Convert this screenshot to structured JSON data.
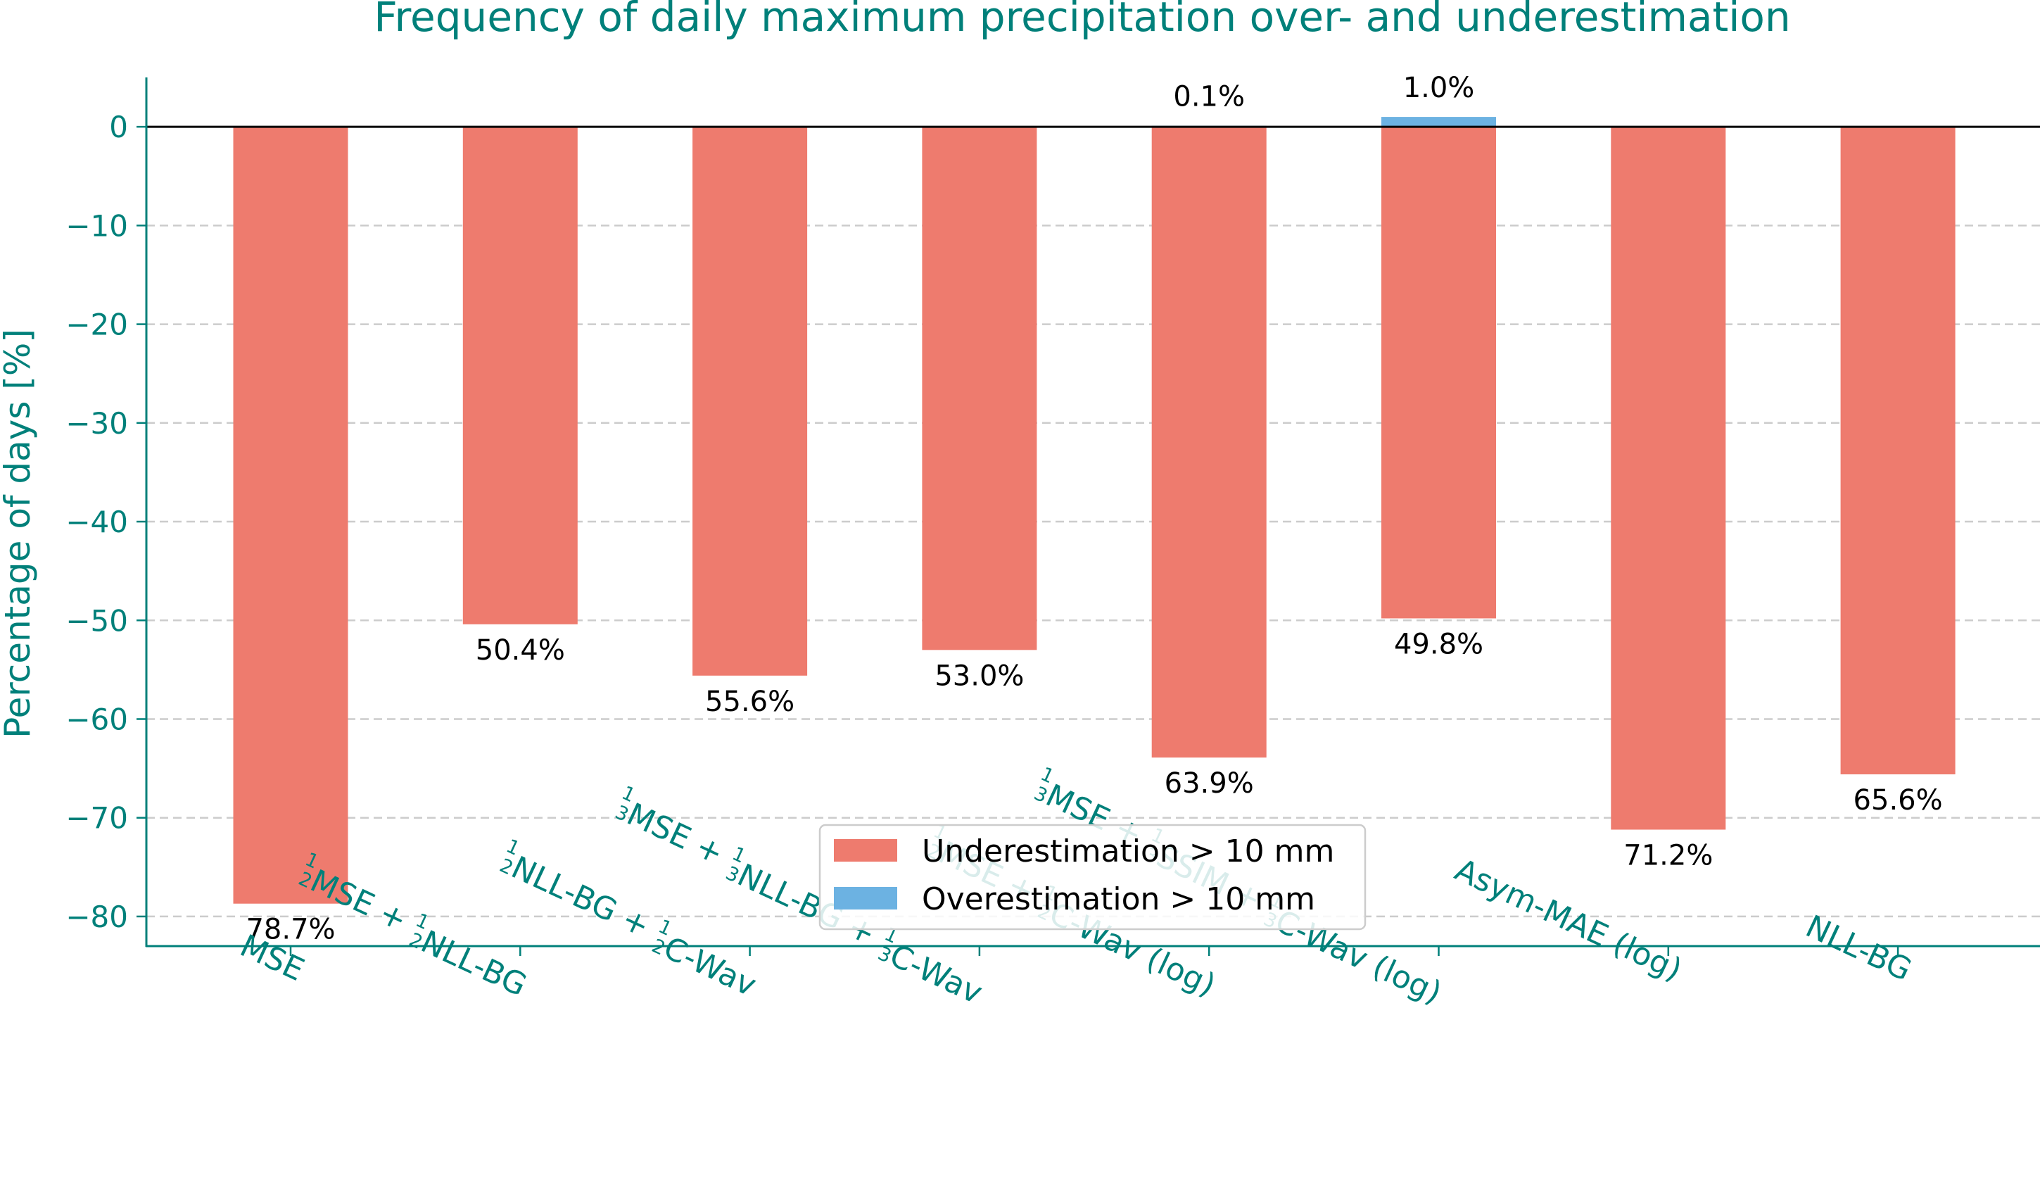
{
  "colors": {
    "accent": "#00807a",
    "under": "#ee7b6e",
    "over": "#6cb2e2",
    "grid": "#cccccc",
    "zero_line": "#000000"
  },
  "chart_data": {
    "type": "bar",
    "title": "Frequency of daily maximum precipitation over- and underestimation",
    "xlabel": "",
    "ylabel": "Percentage of days [%]",
    "ylim": [
      -83,
      5
    ],
    "yticks": [
      0,
      -10,
      -20,
      -30,
      -40,
      -50,
      -60,
      -70,
      -80
    ],
    "ytick_labels": [
      "0",
      "−10",
      "−20",
      "−30",
      "−40",
      "−50",
      "−60",
      "−70",
      "−80"
    ],
    "grid": "horizontal dashed",
    "legend_position": "lower center",
    "categories": [
      "MSE",
      "1/2MSE + 1/2NLL-BG",
      "1/2NLL-BG + 1/2C-Wav",
      "1/3MSE + 1/3NLL-BG + 1/3C-Wav",
      "1/2MSE + 1/2C-Wav (log)",
      "1/3MSE + 1/3SSIM + 1/3C-Wav (log)",
      "Asym-MAE (log)",
      "NLL-BG"
    ],
    "category_parts": [
      [
        [
          "t",
          "MSE"
        ]
      ],
      [
        [
          "f",
          "1",
          "2"
        ],
        [
          "t",
          "MSE + "
        ],
        [
          "f",
          "1",
          "2"
        ],
        [
          "t",
          "NLL-BG"
        ]
      ],
      [
        [
          "f",
          "1",
          "2"
        ],
        [
          "t",
          "NLL-BG + "
        ],
        [
          "f",
          "1",
          "2"
        ],
        [
          "t",
          "C-Wav"
        ]
      ],
      [
        [
          "f",
          "1",
          "3"
        ],
        [
          "t",
          "MSE + "
        ],
        [
          "f",
          "1",
          "3"
        ],
        [
          "t",
          "NLL-BG + "
        ],
        [
          "f",
          "1",
          "3"
        ],
        [
          "t",
          "C-Wav"
        ]
      ],
      [
        [
          "f",
          "1",
          "2"
        ],
        [
          "t",
          "MSE + "
        ],
        [
          "f",
          "1",
          "2"
        ],
        [
          "t",
          "C-Wav (log)"
        ]
      ],
      [
        [
          "f",
          "1",
          "3"
        ],
        [
          "t",
          "MSE + "
        ],
        [
          "f",
          "1",
          "3"
        ],
        [
          "t",
          "SSIM + "
        ],
        [
          "f",
          "1",
          "3"
        ],
        [
          "t",
          "C-Wav (log)"
        ]
      ],
      [
        [
          "t",
          "Asym-MAE (log)"
        ]
      ],
      [
        [
          "t",
          "NLL-BG"
        ]
      ]
    ],
    "series": [
      {
        "name": "Underestimation > 10 mm",
        "color": "#ee7b6e",
        "values": [
          -78.7,
          -50.4,
          -55.6,
          -53.0,
          -63.9,
          -49.8,
          -71.2,
          -65.6
        ],
        "labels": [
          "78.7%",
          "50.4%",
          "55.6%",
          "53.0%",
          "63.9%",
          "49.8%",
          "71.2%",
          "65.6%"
        ]
      },
      {
        "name": "Overestimation > 10 mm",
        "color": "#6cb2e2",
        "values": [
          0,
          0,
          0,
          0,
          0.1,
          1.0,
          0,
          0
        ],
        "labels": [
          "",
          "",
          "",
          "",
          "0.1%",
          "1.0%",
          "",
          ""
        ]
      }
    ]
  }
}
